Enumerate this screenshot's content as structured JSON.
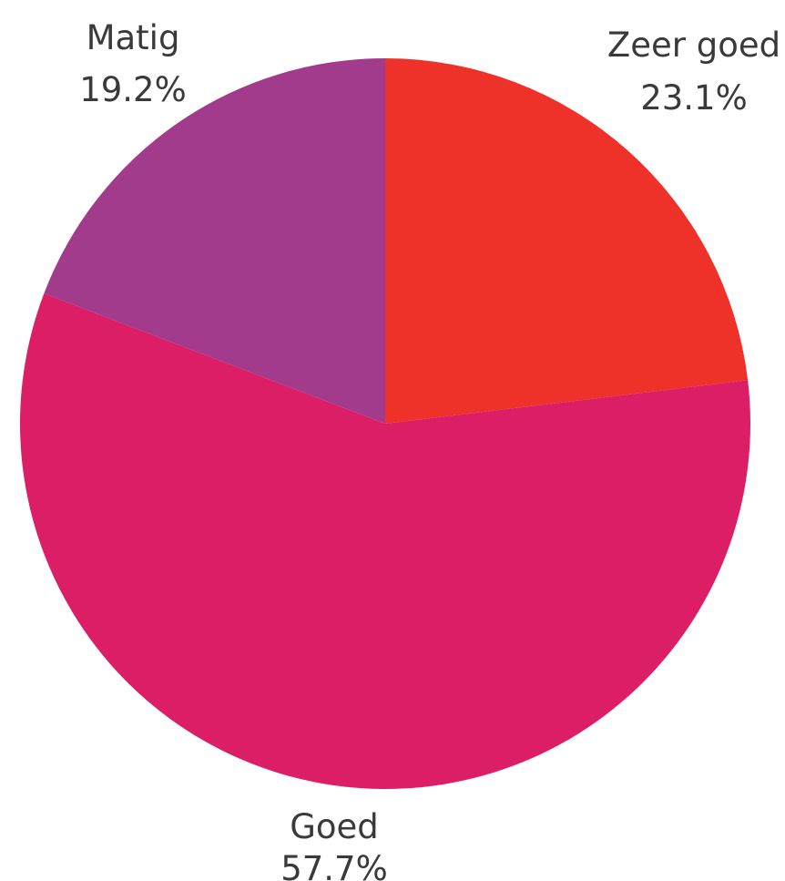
{
  "chart_data": {
    "type": "pie",
    "title": "",
    "slices": [
      {
        "label": "Zeer goed",
        "value": 23.1,
        "value_label": "23.1%",
        "color": "#ee3129"
      },
      {
        "label": "Goed",
        "value": 57.7,
        "value_label": "57.7%",
        "color": "#dc1e66"
      },
      {
        "label": "Matig",
        "value": 19.2,
        "value_label": "19.2%",
        "color": "#a33b8c"
      }
    ],
    "start_angle": "12 o'clock",
    "direction": "clockwise",
    "legend": "none",
    "labels": "outside"
  }
}
